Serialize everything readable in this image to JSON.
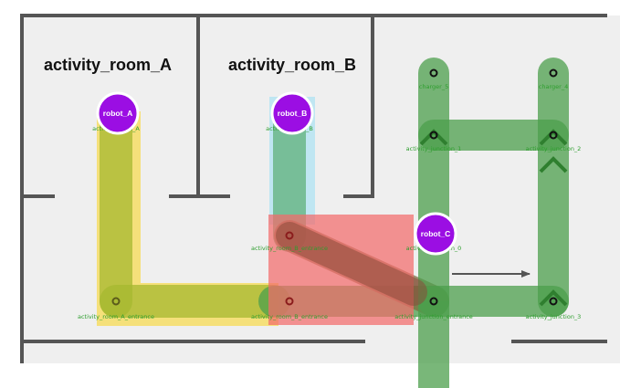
{
  "rooms": {
    "room_a": "activity_room_A",
    "room_b": "activity_room_B"
  },
  "waypoints": {
    "charger_5": "charger_5",
    "charger_4": "charger_4",
    "junction_1": "activity_junction_1",
    "junction_2": "activity_junction_2",
    "room_a_spot": "activity_room_A",
    "room_b_spot": "activity_room_B",
    "room_b_entrance": "activity_room_B_entrance",
    "junction_0": "activity_junction_0",
    "room_a_entrance": "activity_room_A_entrance",
    "room_b_entrance_2": "activity_room_B_entrance",
    "junction_entrance": "activity_junction_entrance",
    "junction_3": "activity_junction_3"
  },
  "robots": {
    "a": "robot_A",
    "b": "robot_B",
    "c": "robot_C"
  },
  "colors": {
    "wall": "#555555",
    "floor": "#efefef",
    "lane": "#4c9f4c",
    "robot": "#9b0ee3",
    "path_a": "#f5e07a",
    "path_b": "#bfe6f2",
    "blocked": "#f26b6b"
  }
}
